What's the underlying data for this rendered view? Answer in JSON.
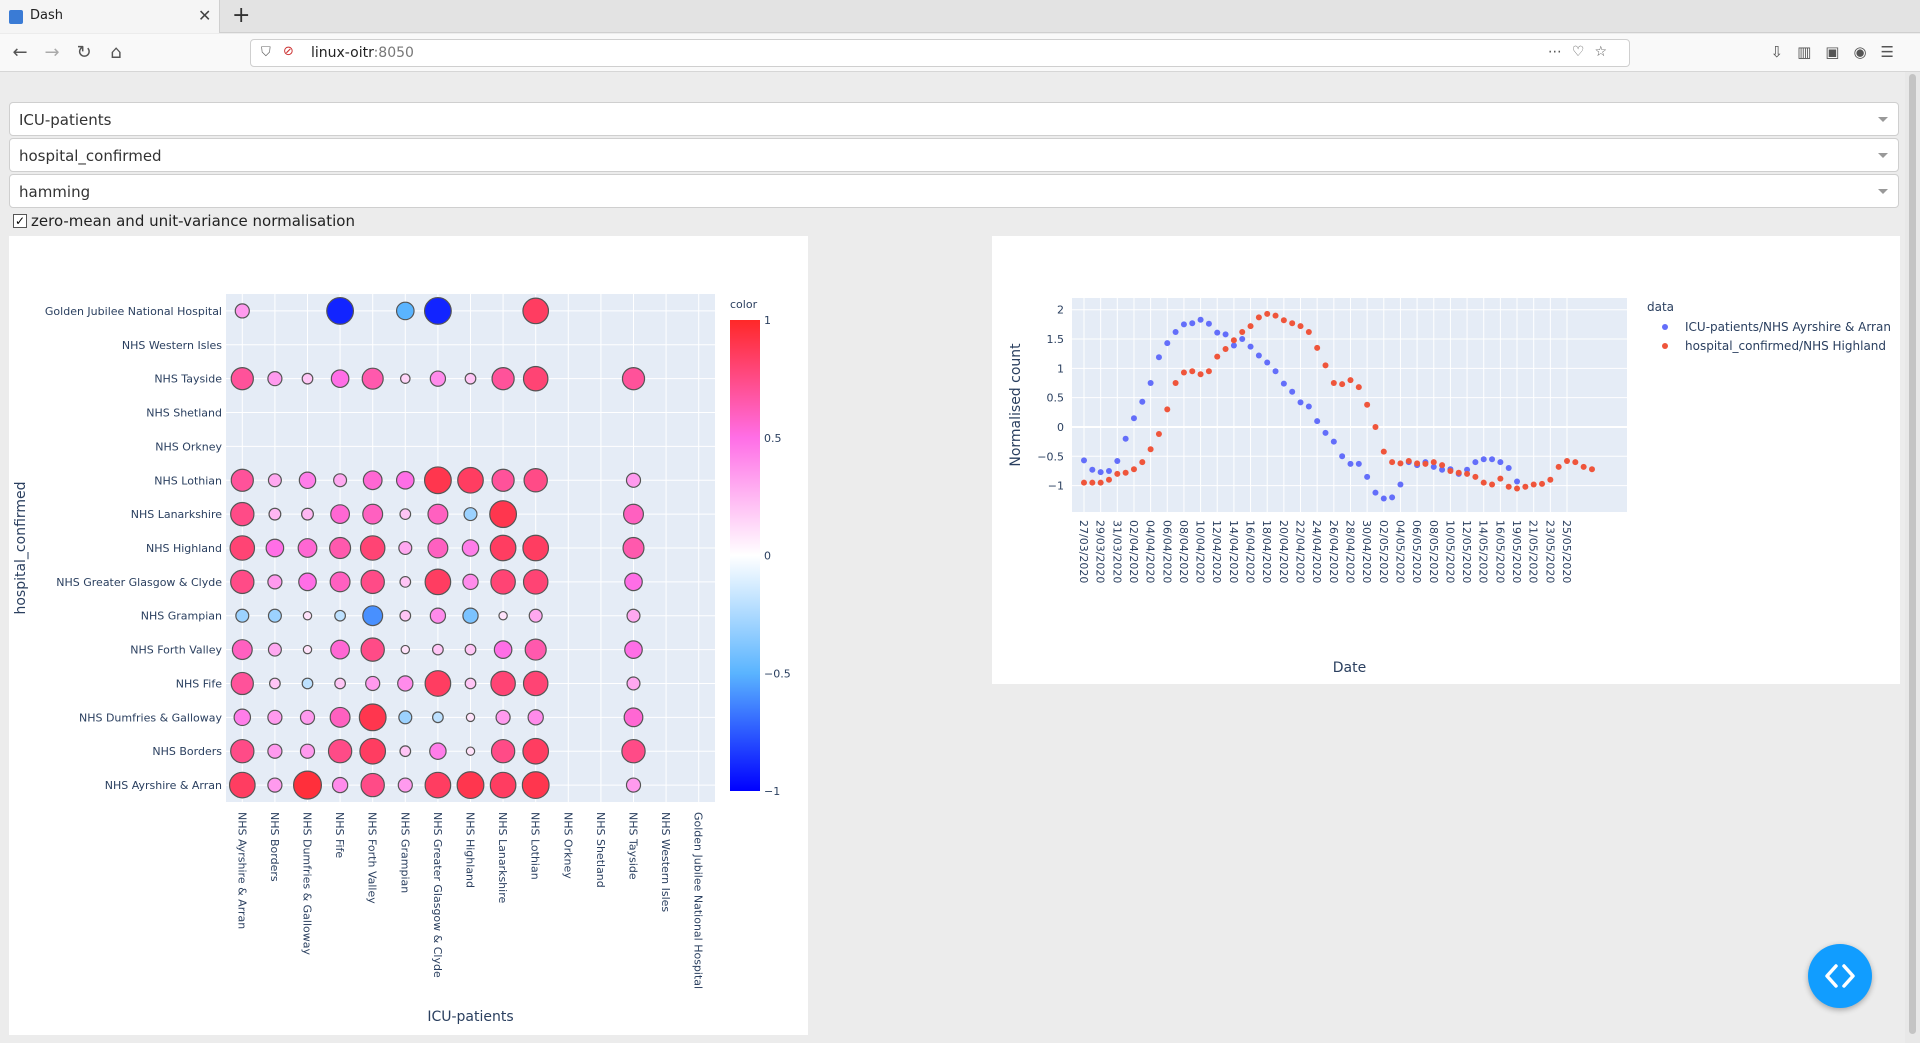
{
  "browser": {
    "tab_title": "Dash",
    "url_host": "linux-oitr",
    "url_port": ":8050"
  },
  "controls": {
    "dropdown1": "ICU-patients",
    "dropdown2": "hospital_confirmed",
    "dropdown3": "hamming",
    "checkbox_label": "zero-mean and unit-variance normalisation",
    "checkbox_checked": true
  },
  "chart_data": [
    {
      "type": "scatter",
      "subtype": "bubble-correlation-matrix",
      "xlabel": "ICU-patients",
      "ylabel": "hospital_confirmed",
      "x_categories": [
        "NHS Ayrshire & Arran",
        "NHS Borders",
        "NHS Dumfries & Galloway",
        "NHS Fife",
        "NHS Forth Valley",
        "NHS Grampian",
        "NHS Greater Glasgow & Clyde",
        "NHS Highland",
        "NHS Lanarkshire",
        "NHS Lothian",
        "NHS Orkney",
        "NHS Shetland",
        "NHS Tayside",
        "NHS Western Isles",
        "Golden Jubilee National Hospital"
      ],
      "y_categories": [
        "NHS Ayrshire & Arran",
        "NHS Borders",
        "NHS Dumfries & Galloway",
        "NHS Fife",
        "NHS Forth Valley",
        "NHS Grampian",
        "NHS Greater Glasgow & Clyde",
        "NHS Highland",
        "NHS Lanarkshire",
        "NHS Lothian",
        "NHS Orkney",
        "NHS Shetland",
        "NHS Tayside",
        "NHS Western Isles",
        "Golden Jubilee National Hospital"
      ],
      "colorbar_title": "color",
      "colorbar_ticks": [
        "1",
        "0.5",
        "0",
        "−0.5",
        "−1"
      ],
      "color_range": [
        -1,
        1
      ],
      "values": [
        [
          0.85,
          0.35,
          0.95,
          0.4,
          0.75,
          0.35,
          0.85,
          0.9,
          0.85,
          0.9,
          null,
          null,
          0.35,
          null,
          null
        ],
        [
          0.75,
          0.35,
          0.35,
          0.75,
          0.85,
          0.2,
          0.45,
          0.1,
          0.75,
          0.85,
          null,
          null,
          0.75,
          null,
          null
        ],
        [
          0.45,
          0.35,
          0.35,
          0.6,
          0.9,
          -0.3,
          -0.2,
          0.1,
          0.35,
          0.4,
          null,
          null,
          0.55,
          null,
          null
        ],
        [
          0.7,
          0.2,
          -0.2,
          0.2,
          0.35,
          0.4,
          0.85,
          0.2,
          0.8,
          0.8,
          null,
          null,
          0.3,
          null,
          null
        ],
        [
          0.6,
          0.3,
          0.1,
          0.55,
          0.75,
          0.1,
          0.2,
          0.2,
          0.5,
          0.65,
          null,
          null,
          0.5,
          null,
          null
        ],
        [
          -0.3,
          -0.3,
          0.1,
          -0.2,
          -0.6,
          0.2,
          0.4,
          -0.4,
          0.1,
          0.3,
          null,
          null,
          0.3,
          null,
          null
        ],
        [
          0.75,
          0.35,
          0.5,
          0.6,
          0.75,
          0.2,
          0.85,
          0.4,
          0.8,
          0.8,
          null,
          null,
          0.5,
          null,
          null
        ],
        [
          0.8,
          0.5,
          0.55,
          0.65,
          0.8,
          0.3,
          0.6,
          0.45,
          0.85,
          0.85,
          null,
          null,
          0.65,
          null,
          null
        ],
        [
          0.75,
          0.25,
          0.25,
          0.55,
          0.6,
          0.2,
          0.6,
          -0.3,
          0.9,
          null,
          null,
          null,
          0.6,
          null,
          null
        ],
        [
          0.7,
          0.3,
          0.45,
          0.3,
          0.55,
          0.5,
          0.9,
          0.85,
          0.7,
          0.75,
          null,
          null,
          0.35,
          null,
          null
        ],
        [
          null,
          null,
          null,
          null,
          null,
          null,
          null,
          null,
          null,
          null,
          null,
          null,
          null,
          null,
          null
        ],
        [
          null,
          null,
          null,
          null,
          null,
          null,
          null,
          null,
          null,
          null,
          null,
          null,
          null,
          null,
          null
        ],
        [
          0.7,
          0.35,
          0.2,
          0.5,
          0.65,
          0.15,
          0.4,
          0.2,
          0.7,
          0.8,
          null,
          null,
          0.7,
          null,
          null
        ],
        [
          null,
          null,
          null,
          null,
          null,
          null,
          null,
          null,
          null,
          null,
          null,
          null,
          null,
          null,
          null
        ],
        [
          0.35,
          null,
          null,
          -0.9,
          null,
          -0.5,
          -0.9,
          null,
          null,
          0.85,
          null,
          null,
          null,
          null,
          null
        ]
      ]
    },
    {
      "type": "scatter",
      "xlabel": "Date",
      "ylabel": "Normalised count",
      "legend_title": "data",
      "legend_position": "top-right",
      "ylim": [
        -1.45,
        2.2
      ],
      "y_ticks": [
        "2",
        "1.5",
        "1",
        "0.5",
        "0",
        "−0.5",
        "−1"
      ],
      "x_ticks": [
        "27/03/2020",
        "29/03/2020",
        "31/03/2020",
        "02/04/2020",
        "04/04/2020",
        "06/04/2020",
        "08/04/2020",
        "10/04/2020",
        "12/04/2020",
        "14/04/2020",
        "16/04/2020",
        "18/04/2020",
        "20/04/2020",
        "22/04/2020",
        "24/04/2020",
        "26/04/2020",
        "28/04/2020",
        "30/04/2020",
        "02/05/2020",
        "04/05/2020",
        "06/05/2020",
        "08/05/2020",
        "10/05/2020",
        "12/05/2020",
        "14/05/2020",
        "16/05/2020",
        "19/05/2020",
        "21/05/2020",
        "23/05/2020",
        "25/05/2020"
      ],
      "series": [
        {
          "name": "ICU-patients/NHS Ayrshire & Arran",
          "color": "#636efa",
          "y": [
            -0.57,
            -0.73,
            -0.77,
            -0.75,
            -0.58,
            -0.2,
            0.15,
            0.43,
            0.75,
            1.19,
            1.43,
            1.62,
            1.75,
            1.77,
            1.83,
            1.76,
            1.61,
            1.58,
            1.39,
            1.5,
            1.37,
            1.22,
            1.1,
            0.95,
            0.74,
            0.6,
            0.42,
            0.35,
            0.1,
            -0.1,
            -0.25,
            -0.5,
            -0.63,
            -0.63,
            -0.85,
            -1.12,
            -1.22,
            -1.2,
            -0.98,
            -0.6,
            -0.65,
            -0.6,
            -0.68,
            -0.73,
            -0.72,
            -0.8,
            -0.73,
            -0.6,
            -0.55,
            -0.55,
            -0.6,
            -0.7,
            -0.93
          ]
        },
        {
          "name": "hospital_confirmed/NHS Highland",
          "color": "#ef553b",
          "y": [
            -0.95,
            -0.95,
            -0.95,
            -0.9,
            -0.8,
            -0.78,
            -0.72,
            -0.6,
            -0.38,
            -0.12,
            0.3,
            0.75,
            0.93,
            0.95,
            0.9,
            0.95,
            1.2,
            1.33,
            1.48,
            1.62,
            1.72,
            1.87,
            1.93,
            1.9,
            1.82,
            1.77,
            1.72,
            1.62,
            1.35,
            1.05,
            0.75,
            0.73,
            0.8,
            0.68,
            0.38,
            0.0,
            -0.42,
            -0.6,
            -0.62,
            -0.58,
            -0.62,
            -0.63,
            -0.6,
            -0.65,
            -0.75,
            -0.78,
            -0.8,
            -0.85,
            -0.95,
            -0.98,
            -0.88,
            -1.02,
            -1.05,
            -1.02,
            -0.98,
            -0.97,
            -0.9,
            -0.68,
            -0.58,
            -0.6,
            -0.68,
            -0.72
          ]
        }
      ]
    }
  ]
}
